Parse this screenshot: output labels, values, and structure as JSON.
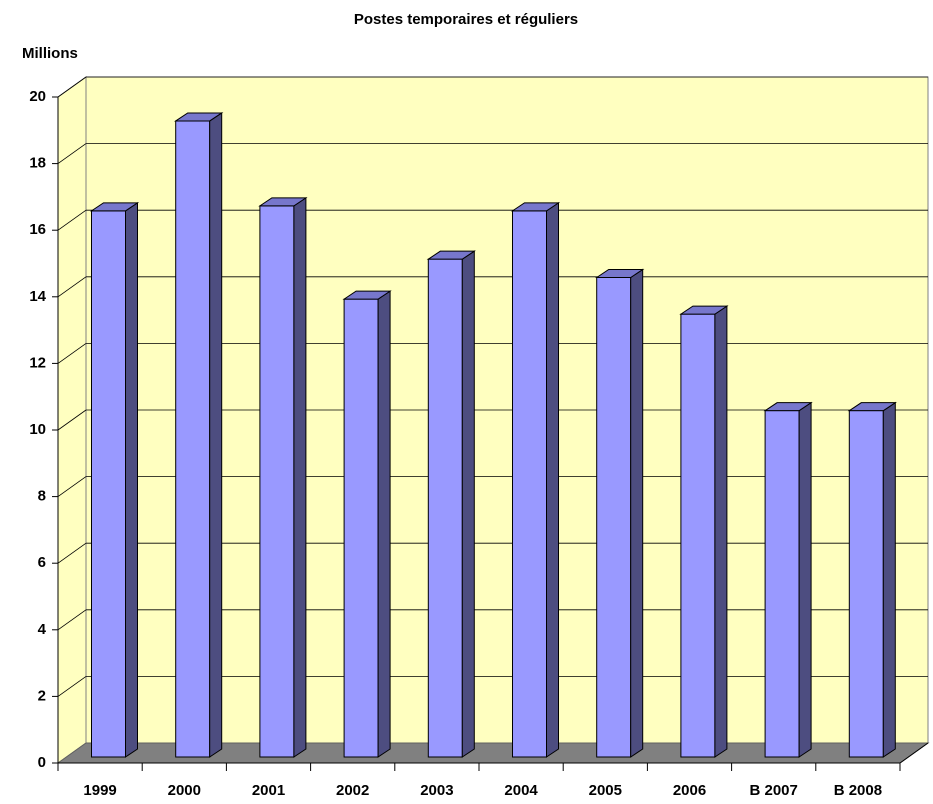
{
  "chart_data": {
    "type": "bar3d",
    "title": "Postes temporaires et réguliers",
    "y_axis_label": "Millions",
    "categories": [
      "1999",
      "2000",
      "2001",
      "2002",
      "2003",
      "2004",
      "2005",
      "2006",
      "B 2007",
      "B 2008"
    ],
    "values": [
      16.4,
      19.1,
      16.55,
      13.75,
      14.95,
      16.4,
      14.4,
      13.3,
      10.4,
      10.4
    ],
    "color": "#9999ff",
    "wall_color": "#ffffc0",
    "floor_color": "#808080",
    "ylim": [
      0,
      20
    ],
    "yticks": [
      0,
      2,
      4,
      6,
      8,
      10,
      12,
      14,
      16,
      18,
      20
    ],
    "grid": true
  }
}
